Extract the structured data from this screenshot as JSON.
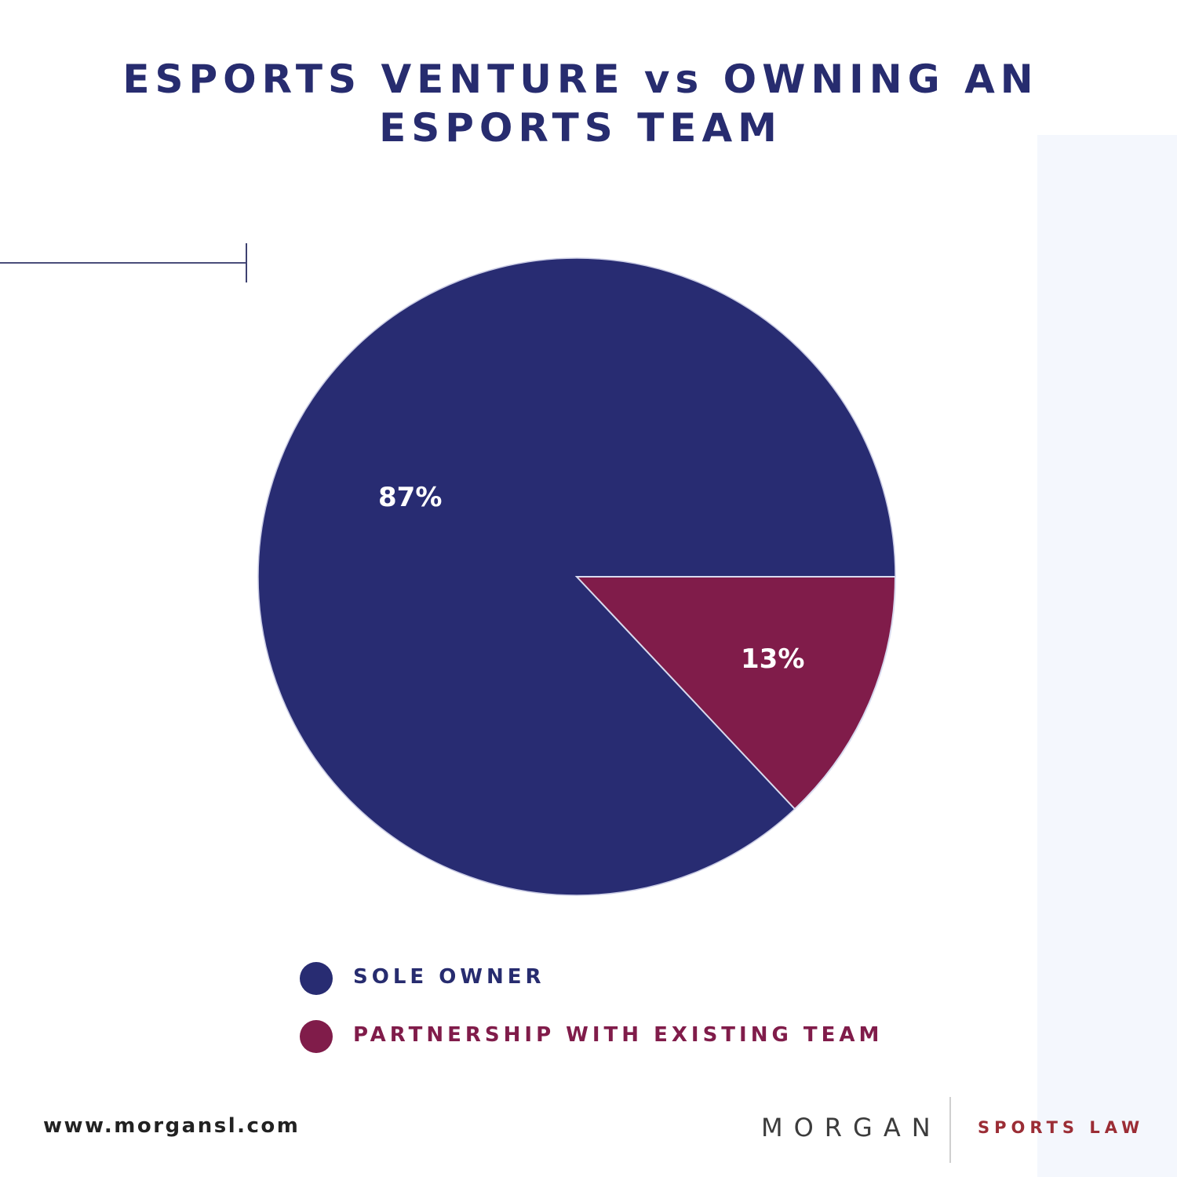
{
  "title": {
    "line1": "ESPORTS VENTURE vs OWNING AN",
    "line2": "ESPORTS TEAM"
  },
  "chart_data": {
    "type": "pie",
    "title": "ESPORTS VENTURE vs OWNING AN ESPORTS TEAM",
    "categories": [
      "SOLE OWNER",
      "PARTNERSHIP WITH EXISTING TEAM"
    ],
    "values": [
      87,
      13
    ],
    "labels": [
      "87%",
      "13%"
    ],
    "colors": [
      "#282c72",
      "#801c4a"
    ],
    "start_angle_deg": 0,
    "direction": "clockwise-from-3-oclock for the 13% slice",
    "legend_position": "bottom",
    "legend": [
      {
        "label": "SOLE OWNER",
        "color": "#282c72"
      },
      {
        "label": "PARTNERSHIP WITH EXISTING TEAM",
        "color": "#801c4a"
      }
    ]
  },
  "footer": {
    "url": "www.morgansl.com",
    "logo_primary": "MORGAN",
    "logo_secondary": "SPORTS LAW"
  },
  "colors": {
    "navy": "#282c72",
    "maroon": "#801c4a",
    "title": "#272c6f",
    "logo_red": "#9b2d35",
    "panel_bg": "#f4f7fd"
  }
}
